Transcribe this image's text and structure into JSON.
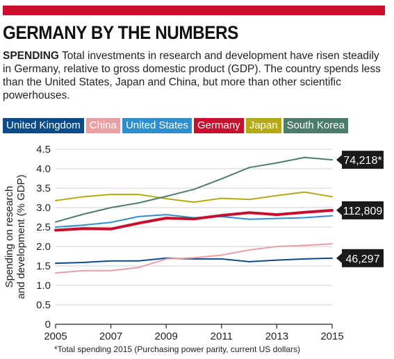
{
  "header": {
    "title": "GERMANY BY THE NUMBERS",
    "lead": "SPENDING",
    "intro": "Total investments in research and development have risen steadily in Germany, relative to gross domestic product (GDP). The country spends less than the United States, Japan and China, but more than other scientific powerhouses."
  },
  "footnote": "*Total spending 2015 (Purchasing power parity, current US dollars)",
  "chart_data": {
    "type": "line",
    "title": "",
    "xlabel": "",
    "ylabel": "Spending on research and development (% GDP)",
    "ylabel_lines": [
      "Spending on research",
      "and development (% GDP)"
    ],
    "xlim": [
      2005,
      2015
    ],
    "ylim": [
      0,
      4.5
    ],
    "xticks": [
      "2005",
      "2007",
      "2009",
      "2011",
      "2013",
      "2015"
    ],
    "yticks": [
      "0",
      "0.5",
      "1.0",
      "1.5",
      "2.0",
      "2.5",
      "3.0",
      "3.5",
      "4.0",
      "4.5"
    ],
    "grid": true,
    "legend_position": "top",
    "x": [
      2005,
      2006,
      2007,
      2008,
      2009,
      2010,
      2011,
      2012,
      2013,
      2014,
      2015
    ],
    "series": [
      {
        "name": "United Kingdom",
        "color": "#0b4a8b",
        "values": [
          1.57,
          1.59,
          1.63,
          1.63,
          1.7,
          1.68,
          1.68,
          1.61,
          1.65,
          1.68,
          1.7
        ]
      },
      {
        "name": "China",
        "color": "#e8a0a4",
        "values": [
          1.32,
          1.38,
          1.38,
          1.46,
          1.68,
          1.71,
          1.78,
          1.91,
          2.0,
          2.03,
          2.07
        ]
      },
      {
        "name": "United States",
        "color": "#2e8fd0",
        "values": [
          2.5,
          2.55,
          2.62,
          2.77,
          2.82,
          2.74,
          2.77,
          2.7,
          2.72,
          2.74,
          2.79
        ]
      },
      {
        "name": "Germany",
        "color": "#c8102e",
        "values": [
          2.42,
          2.46,
          2.45,
          2.6,
          2.73,
          2.71,
          2.8,
          2.87,
          2.82,
          2.88,
          2.93
        ]
      },
      {
        "name": "Japan",
        "color": "#b5aa12",
        "values": [
          3.18,
          3.28,
          3.34,
          3.34,
          3.23,
          3.14,
          3.24,
          3.21,
          3.31,
          3.4,
          3.28
        ]
      },
      {
        "name": "South Korea",
        "color": "#4d7d6a",
        "values": [
          2.63,
          2.83,
          3.0,
          3.12,
          3.29,
          3.47,
          3.74,
          4.03,
          4.15,
          4.29,
          4.23
        ]
      }
    ],
    "callouts": [
      {
        "series": "South Korea",
        "label": "74,218*"
      },
      {
        "series": "Germany",
        "label": "112,809"
      },
      {
        "series": "United Kingdom",
        "label": "46,297"
      }
    ]
  }
}
